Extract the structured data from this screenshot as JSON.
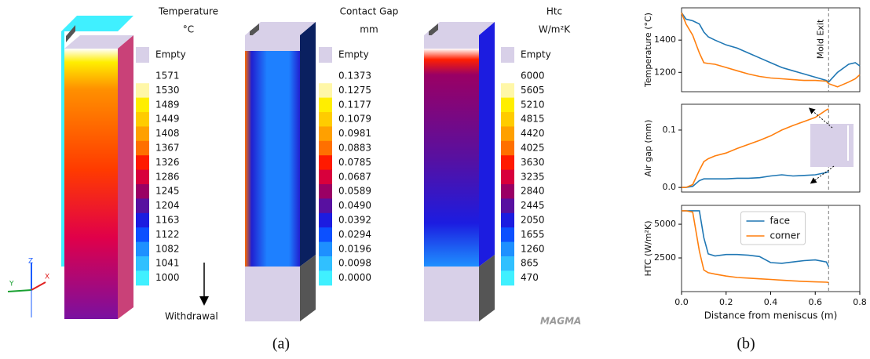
{
  "panel_a": {
    "colors": [
      "#ffffff",
      "#fff7a8",
      "#ffee00",
      "#ffcc00",
      "#ffa000",
      "#ff7000",
      "#ff1a00",
      "#d8003c",
      "#9a0064",
      "#5810a0",
      "#1c1ce0",
      "#0c50ff",
      "#1e90ff",
      "#30c0ff",
      "#40f0ff"
    ],
    "empty_color": "#d8d0e8",
    "colorbars": [
      {
        "title": "Temperature",
        "unit": "°C",
        "empty": "Empty",
        "labels": [
          "1571",
          "1530",
          "1489",
          "1449",
          "1408",
          "1367",
          "1326",
          "1286",
          "1245",
          "1204",
          "1163",
          "1122",
          "1082",
          "1041",
          "1000"
        ]
      },
      {
        "title": "Contact Gap",
        "unit": "mm",
        "empty": "Empty",
        "labels": [
          "0.1373",
          "0.1275",
          "0.1177",
          "0.1079",
          "0.0981",
          "0.0883",
          "0.0785",
          "0.0687",
          "0.0589",
          "0.0490",
          "0.0392",
          "0.0294",
          "0.0196",
          "0.0098",
          "0.0000"
        ]
      },
      {
        "title": "Htc",
        "unit": "W/m²K",
        "empty": "Empty",
        "labels": [
          "6000",
          "5605",
          "5210",
          "4815",
          "4420",
          "4025",
          "3630",
          "3235",
          "2840",
          "2445",
          "2050",
          "1655",
          "1260",
          "865",
          "470"
        ]
      }
    ],
    "withdrawal": "Withdrawal",
    "logo": "MAGMA",
    "axes": [
      "Z",
      "Y",
      "X"
    ]
  },
  "captions": [
    "(a)",
    "(b)"
  ],
  "chart_data": [
    {
      "type": "line",
      "ylabel": "Temperature (°C)",
      "annotation": "Mold Exit",
      "vline": 0.66,
      "x": [
        0,
        0.02,
        0.05,
        0.08,
        0.1,
        0.12,
        0.15,
        0.2,
        0.25,
        0.3,
        0.35,
        0.4,
        0.45,
        0.5,
        0.55,
        0.6,
        0.65,
        0.66,
        0.7,
        0.75,
        0.78,
        0.8
      ],
      "xlim": [
        0,
        0.8
      ],
      "ylim": [
        1080,
        1600
      ],
      "yticks": [
        1200,
        1400
      ],
      "series": [
        {
          "color": "#1f77b4",
          "values": [
            1570,
            1530,
            1520,
            1500,
            1450,
            1420,
            1400,
            1370,
            1350,
            1320,
            1290,
            1260,
            1230,
            1210,
            1190,
            1170,
            1150,
            1140,
            1200,
            1250,
            1260,
            1240
          ]
        },
        {
          "color": "#ff7f0e",
          "values": [
            1570,
            1500,
            1430,
            1320,
            1260,
            1255,
            1250,
            1230,
            1210,
            1190,
            1175,
            1165,
            1160,
            1155,
            1150,
            1150,
            1145,
            1130,
            1110,
            1140,
            1160,
            1185
          ]
        }
      ]
    },
    {
      "type": "line",
      "ylabel": "Air gap (mm)",
      "vline": 0.66,
      "x": [
        0,
        0.02,
        0.05,
        0.08,
        0.1,
        0.12,
        0.15,
        0.2,
        0.25,
        0.3,
        0.35,
        0.4,
        0.45,
        0.5,
        0.55,
        0.6,
        0.65,
        0.66
      ],
      "xlim": [
        0,
        0.8
      ],
      "ylim": [
        -0.008,
        0.145
      ],
      "yticks": [
        {
          "value": 0,
          "label": "0.0"
        },
        0.1
      ],
      "series": [
        {
          "color": "#1f77b4",
          "values": [
            0,
            0,
            0.002,
            0.012,
            0.015,
            0.015,
            0.015,
            0.015,
            0.016,
            0.016,
            0.017,
            0.02,
            0.022,
            0.02,
            0.021,
            0.022,
            0.026,
            0.028
          ]
        },
        {
          "color": "#ff7f0e",
          "values": [
            0,
            0,
            0.005,
            0.03,
            0.045,
            0.05,
            0.055,
            0.06,
            0.068,
            0.075,
            0.082,
            0.09,
            0.1,
            0.108,
            0.115,
            0.122,
            0.135,
            0.137
          ]
        }
      ]
    },
    {
      "type": "line",
      "ylabel": "HTC (W/m²K)",
      "xlabel": "Distance from meniscus (m)",
      "vline": 0.66,
      "legend": "upper center",
      "x": [
        0,
        0.02,
        0.05,
        0.08,
        0.1,
        0.12,
        0.15,
        0.2,
        0.25,
        0.3,
        0.35,
        0.4,
        0.45,
        0.5,
        0.55,
        0.6,
        0.65,
        0.66
      ],
      "xlim": [
        0,
        0.8
      ],
      "xticks": [
        {
          "value": 0,
          "label": "0.0"
        },
        0.2,
        0.4,
        0.6,
        0.8
      ],
      "ylim": [
        0,
        6400
      ],
      "yticks": [
        2500,
        5000
      ],
      "series": [
        {
          "name": "face",
          "color": "#1f77b4",
          "values": [
            6000,
            6000,
            6000,
            6000,
            4000,
            2800,
            2650,
            2750,
            2750,
            2700,
            2600,
            2150,
            2100,
            2200,
            2300,
            2350,
            2200,
            1850
          ]
        },
        {
          "name": "corner",
          "color": "#ff7f0e",
          "values": [
            6000,
            6000,
            5900,
            3000,
            1600,
            1400,
            1300,
            1150,
            1050,
            1000,
            950,
            900,
            850,
            800,
            750,
            720,
            700,
            680
          ]
        }
      ]
    }
  ]
}
